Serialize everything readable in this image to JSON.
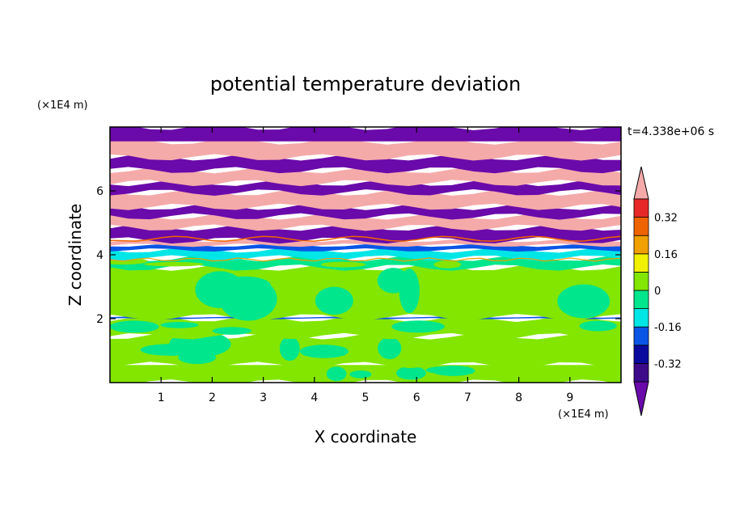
{
  "chart_data": {
    "type": "heatmap",
    "title": "potential temperature deviation",
    "xlabel": "X coordinate",
    "ylabel": "Z coordinate",
    "x_unit": "(×1E4 m)",
    "y_unit": "(×1E4 m)",
    "time_label": "t=4.338e+06 s",
    "xlim": [
      0,
      10
    ],
    "ylim": [
      0,
      8
    ],
    "x_ticks": [
      1,
      2,
      3,
      4,
      5,
      6,
      7,
      8,
      9
    ],
    "x_tick_labels": [
      "1",
      "2",
      "3",
      "4",
      "5",
      "6",
      "7",
      "8",
      "9"
    ],
    "y_ticks": [
      2,
      4,
      6
    ],
    "y_tick_labels": [
      "2",
      "4",
      "6"
    ],
    "colorbar": {
      "levels": [
        -0.4,
        -0.32,
        -0.24,
        -0.16,
        -0.08,
        0,
        0.08,
        0.16,
        0.24,
        0.32,
        0.4
      ],
      "labeled_levels": [
        -0.32,
        -0.16,
        0,
        0.16,
        0.32
      ],
      "labels": [
        "-0.32",
        "-0.16",
        "0",
        "0.16",
        "0.32"
      ],
      "colors": [
        "#3d0a8a",
        "#0a0a9e",
        "#0a55e6",
        "#00e6e6",
        "#00e68c",
        "#82e600",
        "#f0f000",
        "#f0a000",
        "#f06400",
        "#e62828"
      ],
      "below_color": "#6a0aaa",
      "above_color": "#f5aaaa"
    },
    "bands": [
      {
        "z": [
          0.0,
          0.55
        ],
        "base": "#82e600",
        "patches": "#00e68c"
      },
      {
        "z": [
          0.55,
          1.45
        ],
        "base": "#82e600",
        "patches": "#00e68c"
      },
      {
        "z": [
          1.45,
          2.0
        ],
        "base": "#82e600",
        "patches": "#00e68c"
      },
      {
        "z": [
          2.0,
          2.05
        ],
        "base": "#0a55e6"
      },
      {
        "z": [
          2.05,
          3.6
        ],
        "base": "#82e600",
        "patches": "#00e68c"
      },
      {
        "z": [
          3.6,
          3.9
        ],
        "base": "#00e68c",
        "patches": "#82e600"
      },
      {
        "z": [
          3.9,
          4.15
        ],
        "base": "#00e6e6"
      },
      {
        "z": [
          4.15,
          4.3
        ],
        "base": "#0a55e6"
      },
      {
        "z": [
          4.3,
          4.45
        ],
        "base": "#f5aaaa"
      },
      {
        "z": [
          4.45,
          4.85
        ],
        "base": "#6a0aaa"
      },
      {
        "z": [
          4.85,
          5.2
        ],
        "base": "#f5aaaa"
      },
      {
        "z": [
          5.2,
          5.5
        ],
        "base": "#6a0aaa"
      },
      {
        "z": [
          5.5,
          5.95
        ],
        "base": "#f5aaaa"
      },
      {
        "z": [
          5.95,
          6.25
        ],
        "base": "#6a0aaa"
      },
      {
        "z": [
          6.25,
          6.65
        ],
        "base": "#f5aaaa"
      },
      {
        "z": [
          6.65,
          7.05
        ],
        "base": "#6a0aaa"
      },
      {
        "z": [
          7.05,
          7.55
        ],
        "base": "#f5aaaa"
      },
      {
        "z": [
          7.55,
          8.0
        ],
        "base": "#6a0aaa"
      }
    ]
  }
}
